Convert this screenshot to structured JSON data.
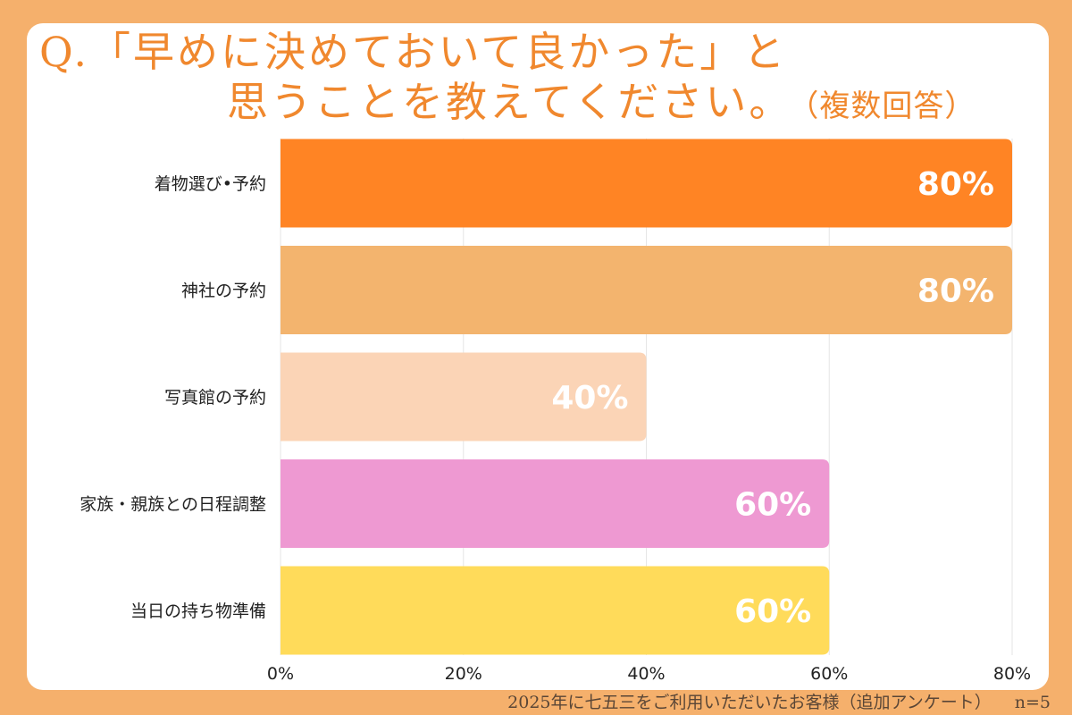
{
  "header": {
    "title_line1": "Q.「早めに決めておいて良かった」と",
    "title_line2": "思うことを教えてください。",
    "title_note": "（複数回答）"
  },
  "footer": {
    "source": "2025年に七五三をご利用いただいたお客様（追加アンケート）",
    "sample": "n=5"
  },
  "chart_data": {
    "type": "bar",
    "orientation": "horizontal",
    "categories": [
      "着物選び•予約",
      "神社の予約",
      "写真館の予約",
      "家族・親族との日程調整",
      "当日の持ち物準備"
    ],
    "values": [
      80,
      80,
      40,
      60,
      60
    ],
    "value_labels": [
      "80%",
      "80%",
      "40%",
      "60%",
      "60%"
    ],
    "colors": [
      "#FF8424",
      "#F3B46E",
      "#FBD4B6",
      "#EE99D2",
      "#FFDB5A"
    ],
    "label_colors": [
      "#FFFFFF",
      "#FFFFFF",
      "#FFFFFF",
      "#FFFFFF",
      "#FFFFFF"
    ],
    "xticks": [
      "0%",
      "20%",
      "40%",
      "60%",
      "80%"
    ],
    "xlim": [
      0,
      80
    ],
    "grid": true
  }
}
